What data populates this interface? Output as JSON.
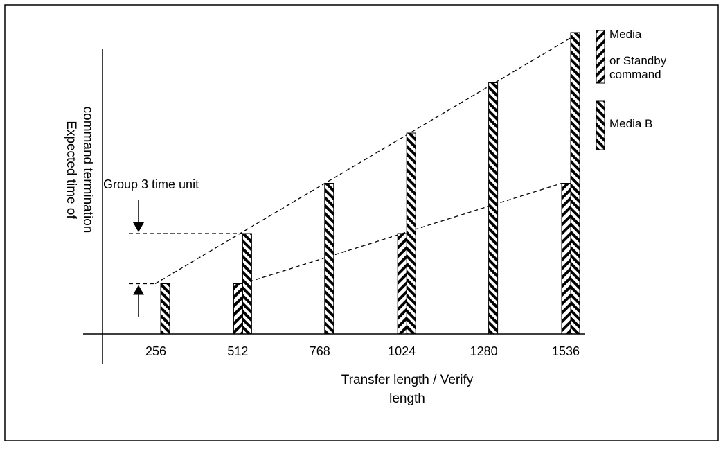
{
  "chart_data": {
    "type": "bar",
    "title": "",
    "xlabel_lines": [
      "Transfer length / Verify",
      "length"
    ],
    "ylabel_lines": [
      "Expected time of",
      "command termination"
    ],
    "categories": [
      "256",
      "512",
      "768",
      "1024",
      "1280",
      "1536"
    ],
    "ylim": [
      0,
      6
    ],
    "grid": false,
    "legend_position": "top-right",
    "legend": {
      "media_lines": [
        "Media",
        "or Standby",
        "command"
      ],
      "media_b": "Media B"
    },
    "series": [
      {
        "key": "media",
        "values": [
          null,
          1,
          null,
          2,
          null,
          3
        ]
      },
      {
        "key": "media_b",
        "values": [
          1,
          2,
          3,
          4,
          5,
          6
        ]
      }
    ],
    "annotation": {
      "label": "Group 3 time unit",
      "from": 1,
      "to": 2
    }
  }
}
